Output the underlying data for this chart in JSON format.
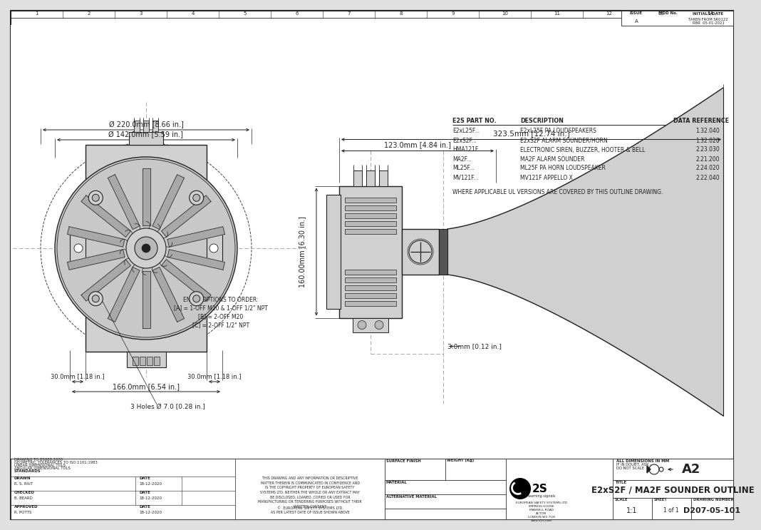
{
  "bg_color": "#f0f0f0",
  "line_color": "#555555",
  "dark_line": "#333333",
  "title": "E2xS2F / MA2F SOUNDER OUTLINE",
  "drawing_number": "D207-05-101",
  "scale": "1:1",
  "sheet": "1 of 1",
  "paper_size": "A2",
  "dim_220": "Ø 220.0mm [8.66 in.]",
  "dim_142": "Ø 142.0mm [5.59 in.]",
  "dim_323": "323.5mm [12.74 in.]",
  "dim_123": "123.0mm [4.84 in.]",
  "dim_160": "160.00mm [6.30 in.]",
  "dim_30l": "30.0mm [1.18 in.]",
  "dim_30r": "30.0mm [1.18 in.]",
  "dim_166": "166.0mm [6.54 in.]",
  "dim_3": "3.0mm [0.12 in.]",
  "dim_holes": "3 Holes Ø 7.0 [0.28 in.]",
  "entry_options": "ENTRY OPTIONS TO ORDER:\n[A] = 1-OFF M20 & 1-OFF 1/2\" NPT\n[B] = 2-OFF M20\n[C] = 2-OFF 1/2\" NPT",
  "parts": [
    [
      "E2xL25F...",
      "E2xL25F PA LOUDSPEAKERS",
      "1.32.040"
    ],
    [
      "E2xS2F...",
      "E2xS2F ALARM SOUNDER/HORN",
      "1.32.020"
    ],
    [
      "HMA121F...",
      "ELECTRONIC SIREN, BUZZER, HOOTER & BELL",
      "2.23.030"
    ],
    [
      "MA2F...",
      "MA2F ALARM SOUNDER",
      "2.21.200"
    ],
    [
      "ML25F...",
      "ML25F PA HORN LOUDSPEAKER",
      "2.24.020"
    ],
    [
      "MV121F...",
      "MV121F APPELLO X",
      "2.22.040"
    ]
  ],
  "ul_note": "WHERE APPLICABLE UL VERSIONS ARE COVERED BY THIS OUTLINE DRAWING.",
  "drawn_by": "R. S. RAIT",
  "checked_by": "B. BEARD",
  "approved_by": "R. POTTS",
  "drawn_date": "18-12-2020",
  "checked_date": "18-12-2020",
  "approved_date": "18-12-2020",
  "issue": "A",
  "company": "EUROPEAN SAFETY SYSTEMS LTD",
  "website": "www.e2s.com",
  "taken_from": "TAKEN FROM SK0122",
  "mod_by": "RBR  05-01-2021"
}
